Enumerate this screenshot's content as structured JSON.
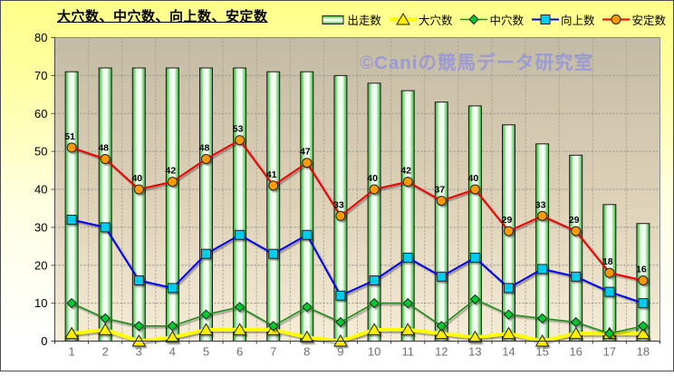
{
  "chart": {
    "title": "大穴数、中穴数、向上数、安定数",
    "watermark": "©Caniの競馬データ研究室",
    "background": {
      "outer_top": "#FFFF8C",
      "outer_bottom": "#FFFFFF",
      "plot_top": "#C4BBA4",
      "plot_bottom": "#F6EDD8",
      "frame_border": "#4D4D4D"
    }
  },
  "chart_data": {
    "type": "combo-bar-line",
    "categories": [
      "1",
      "2",
      "3",
      "4",
      "5",
      "6",
      "7",
      "8",
      "9",
      "10",
      "11",
      "12",
      "13",
      "14",
      "15",
      "16",
      "17",
      "18"
    ],
    "ylim": [
      0,
      80
    ],
    "ytick_step": 10,
    "grid": true,
    "legend_position": "top-right",
    "series": [
      {
        "name": "出走数",
        "type": "bar",
        "marker": "bar",
        "color": "#33CC33",
        "values": [
          71,
          72,
          72,
          72,
          72,
          72,
          71,
          71,
          70,
          68,
          66,
          63,
          62,
          57,
          52,
          49,
          36,
          31
        ]
      },
      {
        "name": "大穴数",
        "type": "line",
        "marker": "triangle",
        "line_color": "#FFFF00",
        "marker_color": "#FFEE00",
        "values": [
          2,
          3,
          0,
          1,
          3,
          3,
          3,
          1,
          0,
          3,
          3,
          2,
          1,
          2,
          0,
          2,
          2,
          2
        ]
      },
      {
        "name": "中穴数",
        "type": "line",
        "marker": "diamond",
        "line_color": "#1E8C1E",
        "marker_color": "#00CC33",
        "values": [
          10,
          6,
          4,
          4,
          7,
          9,
          4,
          9,
          5,
          10,
          10,
          4,
          11,
          7,
          6,
          5,
          2,
          4
        ]
      },
      {
        "name": "向上数",
        "type": "line",
        "marker": "square",
        "line_color": "#0000EE",
        "marker_color": "#00CCEE",
        "values": [
          32,
          30,
          16,
          14,
          23,
          28,
          23,
          28,
          12,
          16,
          22,
          17,
          22,
          14,
          19,
          17,
          13,
          10
        ]
      },
      {
        "name": "安定数",
        "type": "line",
        "marker": "circle",
        "line_color": "#EE0000",
        "marker_color": "#FF9900",
        "show_labels": true,
        "values": [
          51,
          48,
          40,
          42,
          48,
          53,
          41,
          47,
          33,
          40,
          42,
          37,
          40,
          29,
          33,
          29,
          18,
          16
        ]
      }
    ]
  }
}
